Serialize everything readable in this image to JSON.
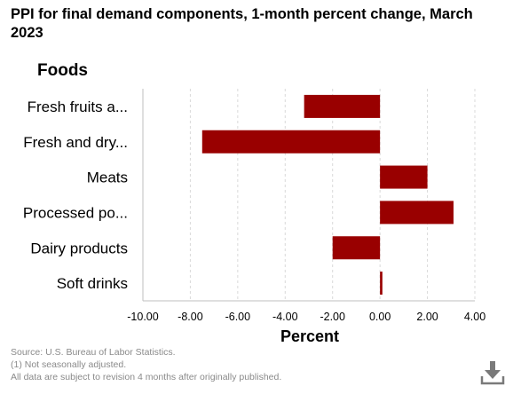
{
  "title": "PPI for final demand components, 1-month percent change, March 2023",
  "colors": {
    "bar": "#990000",
    "grid": "#d9d9d9",
    "axis": "#bfbfbf",
    "icon": "#7a7a7a"
  },
  "icons": {
    "download": "download-icon"
  },
  "footer": {
    "source": "Source: U.S. Bureau of Labor Statistics.",
    "note1": "(1) Not seasonally adjusted.",
    "note2": "All data are subject to revision 4 months after originally published."
  },
  "chart_data": {
    "type": "bar",
    "orientation": "horizontal",
    "group_label": "Foods",
    "categories": [
      "Fresh fruits a...",
      "Fresh and dry...",
      "Meats",
      "Processed po...",
      "Dairy products",
      "Soft drinks"
    ],
    "values": [
      -3.2,
      -7.5,
      2.0,
      3.1,
      -2.0,
      0.1
    ],
    "xlabel": "Percent",
    "xlim": [
      -10,
      4
    ],
    "xticks": [
      -10,
      -8,
      -6,
      -4,
      -2,
      0,
      2,
      4
    ],
    "xtick_labels": [
      "-10.00",
      "-8.00",
      "-6.00",
      "-4.00",
      "-2.00",
      "0.00",
      "2.00",
      "4.00"
    ],
    "grid": "vertical dashed",
    "legend": "none"
  }
}
